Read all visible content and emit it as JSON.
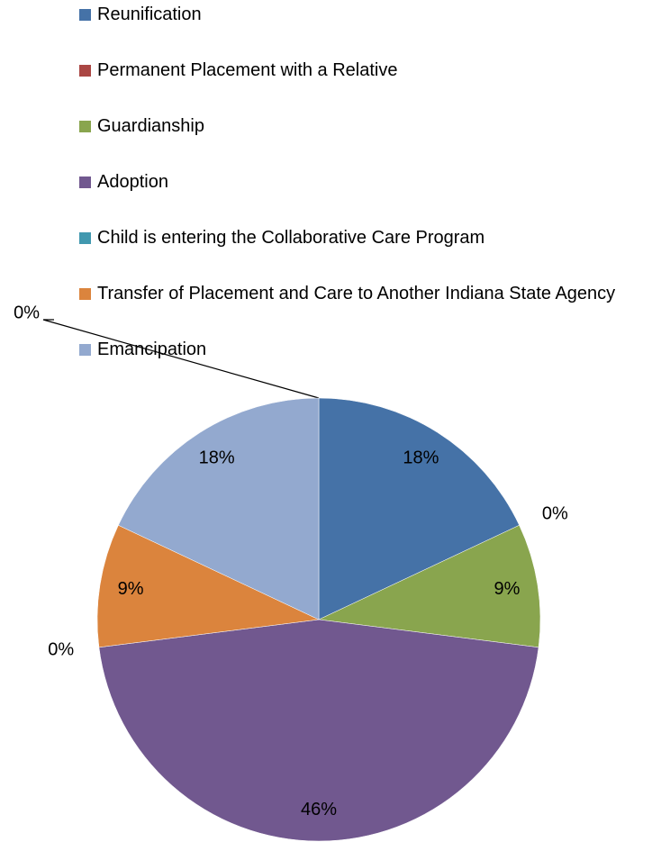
{
  "chart_data": {
    "type": "pie",
    "categories": [
      null,
      "Reunification",
      "Permanent Placement with a Relative",
      "Guardianship",
      "Adoption",
      "Child is entering the Collaborative Care Program",
      "Transfer of Placement and Care to Another Indiana State Agency",
      "Emancipation"
    ],
    "values": [
      0,
      18,
      0,
      9,
      46,
      0,
      9,
      18
    ],
    "value_labels": [
      "0%",
      "18%",
      "0%",
      "9%",
      "46%",
      "0%",
      "9%",
      "18%"
    ],
    "colors": [
      "#4198af",
      "#4572a7",
      "#aa4643",
      "#89a54e",
      "#71588f",
      "#4198af",
      "#db843d",
      "#93a9cf"
    ],
    "legend": "top"
  }
}
